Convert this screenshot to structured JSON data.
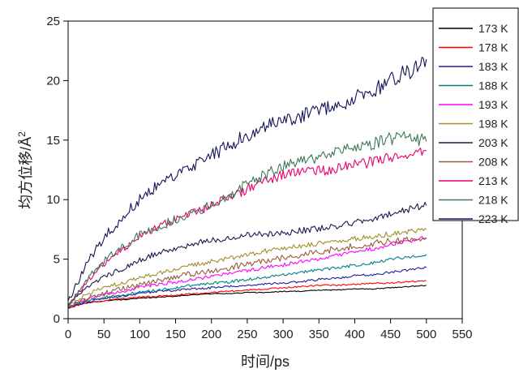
{
  "chart_data": {
    "type": "line",
    "xlabel": "时间/ps",
    "ylabel_main": "均方位移/Å",
    "ylabel_sup": "2",
    "xlim": [
      0,
      550
    ],
    "ylim": [
      0,
      25
    ],
    "xticks": [
      0,
      50,
      100,
      150,
      200,
      250,
      300,
      350,
      400,
      450,
      500,
      550
    ],
    "yticks": [
      0,
      5,
      10,
      15,
      20,
      25
    ],
    "grid": false,
    "legend_position": "top-right",
    "x": [
      0,
      25,
      50,
      75,
      100,
      125,
      150,
      175,
      200,
      225,
      250,
      275,
      300,
      325,
      350,
      375,
      400,
      425,
      450,
      475,
      500
    ],
    "series": [
      {
        "name": "173 K",
        "color": "#000000",
        "values": [
          0.9,
          1.3,
          1.5,
          1.6,
          1.7,
          1.8,
          1.9,
          2.0,
          2.1,
          2.1,
          2.2,
          2.2,
          2.3,
          2.3,
          2.4,
          2.4,
          2.5,
          2.5,
          2.6,
          2.7,
          2.8
        ]
      },
      {
        "name": "178 K",
        "color": "#ff0000",
        "values": [
          0.9,
          1.3,
          1.5,
          1.7,
          1.8,
          1.9,
          2.0,
          2.1,
          2.2,
          2.3,
          2.4,
          2.5,
          2.6,
          2.7,
          2.8,
          2.8,
          2.9,
          3.0,
          3.0,
          3.1,
          3.2
        ]
      },
      {
        "name": "183 K",
        "color": "#1c1c9c",
        "values": [
          0.9,
          1.4,
          1.7,
          1.9,
          2.1,
          2.3,
          2.4,
          2.5,
          2.6,
          2.7,
          2.8,
          2.9,
          3.0,
          3.1,
          3.3,
          3.4,
          3.6,
          3.7,
          3.9,
          4.1,
          4.3
        ]
      },
      {
        "name": "188 K",
        "color": "#008080",
        "values": [
          1.0,
          1.5,
          1.8,
          2.0,
          2.2,
          2.4,
          2.6,
          2.8,
          3.0,
          3.1,
          3.3,
          3.5,
          3.7,
          3.9,
          4.1,
          4.3,
          4.5,
          4.7,
          5.0,
          5.2,
          5.4
        ]
      },
      {
        "name": "193 K",
        "color": "#ff00ff",
        "values": [
          1.0,
          1.6,
          2.0,
          2.3,
          2.6,
          2.9,
          3.1,
          3.3,
          3.6,
          3.8,
          4.0,
          4.3,
          4.5,
          4.8,
          5.0,
          5.3,
          5.6,
          5.9,
          6.2,
          6.5,
          6.8
        ]
      },
      {
        "name": "198 K",
        "color": "#a0902a",
        "values": [
          1.0,
          2.0,
          2.6,
          3.0,
          3.4,
          3.8,
          4.2,
          4.5,
          4.8,
          5.1,
          5.4,
          5.7,
          5.9,
          6.1,
          6.3,
          6.5,
          6.7,
          6.9,
          7.1,
          7.3,
          7.5
        ]
      },
      {
        "name": "203 K",
        "color": "#201850",
        "values": [
          1.2,
          2.5,
          3.5,
          4.2,
          4.9,
          5.5,
          5.9,
          6.3,
          6.6,
          6.8,
          7.0,
          7.1,
          7.2,
          7.4,
          7.6,
          7.8,
          8.1,
          8.4,
          8.8,
          9.2,
          9.5
        ]
      },
      {
        "name": "208 K",
        "color": "#9a5a3a",
        "values": [
          1.0,
          1.7,
          2.1,
          2.5,
          2.8,
          3.2,
          3.5,
          3.8,
          4.0,
          4.3,
          4.6,
          4.9,
          5.1,
          5.4,
          5.6,
          5.9,
          6.1,
          6.3,
          6.5,
          6.7,
          6.8
        ]
      },
      {
        "name": "213 K",
        "color": "#e6006e",
        "values": [
          1.0,
          3.0,
          4.6,
          5.8,
          6.9,
          7.7,
          8.3,
          8.9,
          9.5,
          10.2,
          10.9,
          11.6,
          12.1,
          12.3,
          12.4,
          12.6,
          12.9,
          13.2,
          13.5,
          13.8,
          14.1
        ]
      },
      {
        "name": "218 K",
        "color": "#3d7a56",
        "values": [
          1.0,
          3.2,
          4.8,
          6.0,
          7.0,
          7.7,
          8.3,
          8.9,
          9.6,
          10.4,
          11.3,
          12.1,
          12.8,
          13.3,
          13.6,
          14.0,
          14.4,
          14.7,
          15.1,
          15.3,
          14.9
        ]
      },
      {
        "name": "223 K",
        "color": "#14145a",
        "values": [
          1.5,
          4.5,
          6.8,
          8.5,
          10.0,
          11.2,
          12.1,
          12.8,
          13.7,
          14.6,
          15.4,
          16.1,
          16.7,
          17.1,
          17.4,
          17.9,
          18.5,
          19.2,
          20.0,
          20.8,
          21.8
        ]
      }
    ]
  }
}
